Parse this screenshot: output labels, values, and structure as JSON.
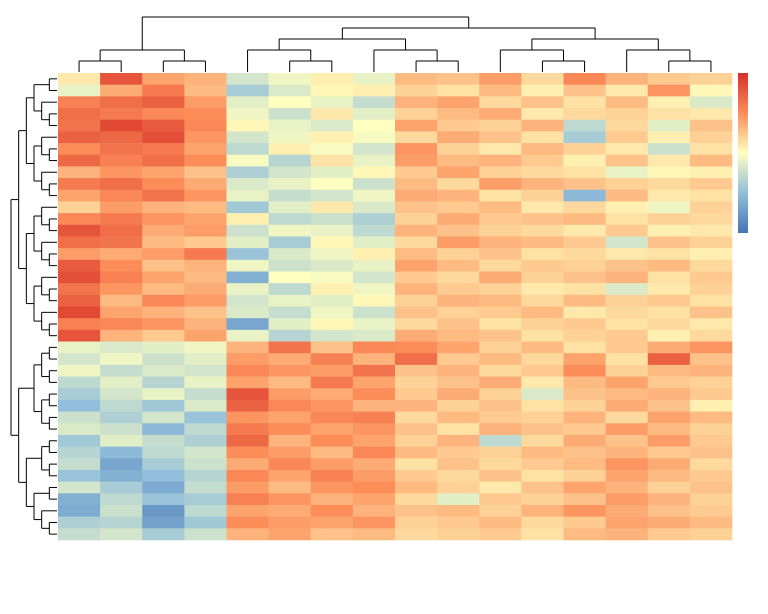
{
  "chart_data": {
    "type": "heatmap",
    "zlim": [
      -3,
      3
    ],
    "colors": [
      "#4575b4",
      "#91bfdb",
      "#ffffbf",
      "#fc8d59",
      "#d73027"
    ],
    "values": [
      [
        0.3,
        2.4,
        1.2,
        1.0,
        -0.6,
        -0.2,
        0.2,
        -0.3,
        0.9,
        0.8,
        1.3,
        0.5,
        1.6,
        1.0,
        0.7,
        0.6
      ],
      [
        -0.3,
        1.1,
        1.8,
        0.9,
        -1.2,
        -0.5,
        0.1,
        0.2,
        0.6,
        0.4,
        0.9,
        0.2,
        0.8,
        0.3,
        1.4,
        0.1
      ],
      [
        1.7,
        2.0,
        2.2,
        1.3,
        -0.4,
        0.0,
        -0.3,
        -0.8,
        1.0,
        1.2,
        0.5,
        0.8,
        0.4,
        0.9,
        0.2,
        -0.5
      ],
      [
        2.0,
        1.8,
        1.6,
        1.5,
        -0.2,
        -0.7,
        0.3,
        -0.4,
        0.6,
        0.9,
        1.1,
        0.3,
        0.5,
        0.6,
        0.4,
        0.3
      ],
      [
        1.9,
        2.6,
        2.3,
        1.6,
        0.1,
        -0.3,
        -0.5,
        0.0,
        1.2,
        0.7,
        0.6,
        1.0,
        -0.9,
        0.5,
        -0.4,
        0.8
      ],
      [
        2.2,
        2.1,
        2.5,
        1.4,
        -0.6,
        -0.2,
        0.2,
        -0.1,
        0.5,
        1.1,
        0.8,
        0.4,
        -1.2,
        0.7,
        0.2,
        0.6
      ],
      [
        1.5,
        1.9,
        1.8,
        1.2,
        -0.9,
        0.2,
        -0.1,
        -0.6,
        1.4,
        0.6,
        0.3,
        0.9,
        0.6,
        0.3,
        -0.7,
        0.4
      ],
      [
        2.1,
        1.7,
        2.0,
        1.5,
        -0.1,
        -1.0,
        0.4,
        -0.3,
        1.3,
        0.9,
        1.0,
        0.7,
        0.2,
        0.8,
        0.3,
        0.9
      ],
      [
        1.0,
        1.4,
        1.2,
        0.8,
        -1.1,
        -0.6,
        -0.4,
        0.1,
        0.7,
        1.2,
        0.6,
        0.5,
        0.4,
        -0.3,
        0.1,
        0.2
      ],
      [
        1.8,
        2.0,
        1.5,
        1.1,
        -0.5,
        -0.3,
        0.0,
        -0.7,
        0.9,
        0.5,
        1.3,
        1.0,
        0.8,
        0.6,
        0.5,
        0.7
      ],
      [
        1.2,
        1.6,
        1.9,
        1.4,
        -0.3,
        -0.8,
        -0.6,
        -0.2,
        1.1,
        1.0,
        0.4,
        0.6,
        -1.6,
        0.9,
        0.3,
        0.4
      ],
      [
        0.6,
        1.3,
        1.0,
        0.9,
        -1.3,
        -0.4,
        0.3,
        -0.5,
        0.8,
        0.7,
        0.9,
        0.3,
        0.5,
        0.2,
        -0.2,
        0.6
      ],
      [
        1.6,
        1.8,
        1.4,
        1.2,
        0.2,
        -0.9,
        -0.7,
        -1.1,
        0.6,
        1.1,
        0.7,
        0.8,
        0.9,
        0.4,
        0.6,
        0.5
      ],
      [
        2.4,
        2.0,
        1.1,
        1.3,
        -0.7,
        -0.2,
        -0.3,
        -0.9,
        1.0,
        0.8,
        0.6,
        0.5,
        0.3,
        0.7,
        0.2,
        0.3
      ],
      [
        2.0,
        1.9,
        0.9,
        0.7,
        -0.4,
        -1.2,
        0.1,
        -0.4,
        0.5,
        1.3,
        1.0,
        0.9,
        0.7,
        -0.6,
        0.8,
        0.6
      ],
      [
        1.3,
        1.1,
        1.3,
        1.8,
        -1.4,
        -0.5,
        -0.2,
        0.2,
        0.9,
        0.6,
        0.8,
        0.4,
        0.5,
        0.3,
        0.4,
        0.2
      ],
      [
        2.3,
        1.5,
        0.8,
        1.0,
        -0.2,
        -0.7,
        -0.5,
        -0.3,
        1.2,
        0.9,
        0.5,
        0.7,
        0.6,
        0.8,
        0.9,
        0.5
      ],
      [
        2.5,
        1.7,
        1.2,
        0.9,
        -1.8,
        0.0,
        -0.1,
        -0.6,
        0.7,
        0.5,
        1.1,
        0.6,
        0.8,
        1.0,
        0.4,
        0.7
      ],
      [
        1.9,
        1.4,
        0.9,
        1.1,
        -0.3,
        -0.9,
        0.2,
        -0.2,
        1.0,
        0.7,
        0.6,
        0.3,
        0.4,
        -0.5,
        0.3,
        0.6
      ],
      [
        2.2,
        0.9,
        1.6,
        1.3,
        -0.6,
        -0.3,
        -0.4,
        0.1,
        0.6,
        1.0,
        0.9,
        0.5,
        0.9,
        0.6,
        0.7,
        0.4
      ],
      [
        2.6,
        1.2,
        1.0,
        0.8,
        -0.5,
        -0.8,
        -0.2,
        -0.7,
        0.8,
        0.6,
        0.7,
        0.9,
        0.3,
        0.5,
        0.4,
        0.8
      ],
      [
        1.7,
        1.6,
        1.4,
        1.0,
        -2.0,
        -0.4,
        0.1,
        -0.3,
        0.5,
        0.8,
        0.4,
        0.6,
        0.7,
        0.4,
        0.5,
        0.3
      ],
      [
        2.4,
        1.0,
        0.7,
        1.2,
        -0.3,
        -1.0,
        -0.6,
        -0.5,
        1.1,
        0.9,
        0.8,
        0.4,
        0.6,
        0.7,
        0.2,
        0.5
      ],
      [
        -0.3,
        -0.5,
        -0.4,
        -0.2,
        1.0,
        1.9,
        0.8,
        1.6,
        1.5,
        1.2,
        0.6,
        0.9,
        0.4,
        0.7,
        1.1,
        1.4
      ],
      [
        -0.6,
        -0.2,
        -0.7,
        -0.4,
        1.3,
        1.1,
        1.7,
        1.0,
        2.0,
        0.7,
        0.9,
        0.5,
        1.2,
        0.4,
        2.2,
        0.8
      ],
      [
        -0.2,
        -0.8,
        -0.5,
        -0.6,
        1.6,
        1.4,
        1.3,
        1.9,
        0.8,
        1.0,
        0.5,
        0.7,
        1.5,
        0.6,
        0.9,
        1.0
      ],
      [
        -0.9,
        -0.4,
        -1.0,
        -0.3,
        1.2,
        0.9,
        1.8,
        1.2,
        0.6,
        0.8,
        1.1,
        0.3,
        0.9,
        1.2,
        0.7,
        0.6
      ],
      [
        -1.2,
        -0.6,
        -0.3,
        -0.8,
        2.4,
        1.3,
        1.1,
        1.5,
        0.7,
        1.1,
        0.6,
        -0.5,
        0.8,
        0.9,
        1.0,
        0.7
      ],
      [
        -1.5,
        -0.9,
        -1.3,
        -0.5,
        2.2,
        1.6,
        1.4,
        1.0,
        1.0,
        0.6,
        0.8,
        0.4,
        0.6,
        1.1,
        0.8,
        0.2
      ],
      [
        -0.7,
        -1.1,
        -0.6,
        -1.4,
        1.4,
        1.2,
        1.6,
        1.7,
        0.5,
        0.9,
        0.7,
        0.6,
        1.0,
        0.5,
        1.2,
        0.9
      ],
      [
        -0.5,
        -0.7,
        -1.6,
        -0.9,
        1.8,
        1.5,
        1.2,
        1.4,
        0.8,
        0.4,
        1.0,
        0.8,
        0.7,
        1.3,
        0.9,
        0.6
      ],
      [
        -1.3,
        -0.4,
        -0.8,
        -1.1,
        2.1,
        1.0,
        1.5,
        1.2,
        0.6,
        1.0,
        -0.9,
        0.5,
        1.1,
        0.8,
        1.3,
        0.7
      ],
      [
        -1.0,
        -1.6,
        -0.9,
        -0.6,
        1.5,
        1.3,
        0.9,
        1.6,
        0.9,
        0.7,
        0.6,
        0.9,
        0.8,
        1.0,
        0.7,
        0.8
      ],
      [
        -0.8,
        -2.0,
        -1.2,
        -0.7,
        1.1,
        1.6,
        1.3,
        1.1,
        0.4,
        0.8,
        0.5,
        0.7,
        0.9,
        1.4,
        1.1,
        0.5
      ],
      [
        -1.4,
        -1.8,
        -1.5,
        -1.0,
        1.6,
        1.2,
        1.7,
        1.3,
        0.7,
        0.5,
        0.8,
        0.4,
        0.6,
        1.2,
        0.9,
        0.7
      ],
      [
        -0.6,
        -1.2,
        -1.9,
        -0.8,
        1.3,
        0.9,
        1.4,
        1.5,
        0.9,
        0.6,
        0.3,
        0.8,
        1.2,
        1.0,
        0.6,
        0.8
      ],
      [
        -1.8,
        -0.9,
        -1.4,
        -1.2,
        1.7,
        1.4,
        1.0,
        1.2,
        0.5,
        -0.4,
        0.7,
        0.6,
        0.8,
        1.3,
        1.0,
        0.6
      ],
      [
        -1.9,
        -0.7,
        -2.3,
        -0.9,
        1.2,
        1.1,
        1.5,
        1.0,
        0.8,
        0.9,
        0.6,
        1.0,
        1.4,
        1.1,
        0.8,
        0.7
      ],
      [
        -1.1,
        -1.0,
        -2.1,
        -1.3,
        1.5,
        1.3,
        1.2,
        1.4,
        0.6,
        0.7,
        0.9,
        0.5,
        0.7,
        1.2,
        1.1,
        0.9
      ],
      [
        -0.8,
        -0.6,
        -1.2,
        -0.7,
        1.0,
        1.2,
        0.8,
        0.9,
        0.5,
        0.6,
        0.7,
        0.4,
        0.9,
        1.0,
        0.7,
        0.6
      ]
    ]
  }
}
